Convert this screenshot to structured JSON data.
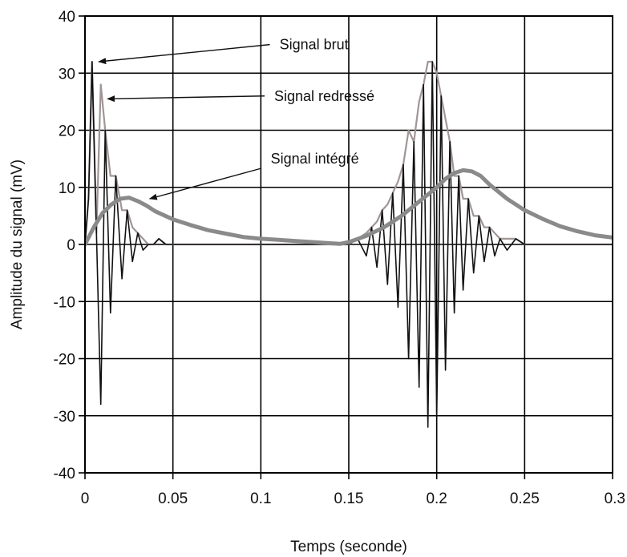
{
  "chart_data": {
    "type": "line",
    "title": "",
    "xlabel": "Temps (seconde)",
    "ylabel": "Amplitude du signal (mV)",
    "xlim": [
      0,
      0.3
    ],
    "ylim": [
      -40,
      40
    ],
    "xticks": [
      0,
      0.05,
      0.1,
      0.15,
      0.2,
      0.25,
      0.3
    ],
    "xtick_labels": [
      "0",
      "0.05",
      "0.1",
      "0.15",
      "0.2",
      "0.25",
      "0.3"
    ],
    "yticks": [
      -40,
      -30,
      -20,
      -10,
      0,
      10,
      20,
      30,
      40
    ],
    "ytick_labels": [
      "-40",
      "-30",
      "-20",
      "-10",
      "0",
      "10",
      "20",
      "30",
      "40"
    ],
    "grid": true,
    "series": [
      {
        "key": "raw",
        "color": "#111111",
        "x": [
          0,
          0.002,
          0.004,
          0.0065,
          0.009,
          0.0115,
          0.0145,
          0.0175,
          0.021,
          0.024,
          0.027,
          0.03,
          0.033,
          0.036,
          0.039,
          0.042,
          0.046,
          0.05,
          0.055,
          0.06,
          0.07,
          0.08,
          0.09,
          0.1,
          0.11,
          0.12,
          0.13,
          0.14,
          0.145,
          0.15,
          0.155,
          0.16,
          0.163,
          0.166,
          0.169,
          0.172,
          0.175,
          0.178,
          0.181,
          0.184,
          0.187,
          0.19,
          0.1925,
          0.195,
          0.1975,
          0.2,
          0.2025,
          0.205,
          0.2075,
          0.21,
          0.2125,
          0.215,
          0.218,
          0.221,
          0.224,
          0.227,
          0.23,
          0.233,
          0.236,
          0.24,
          0.245,
          0.25,
          0.255,
          0.26,
          0.27,
          0.28,
          0.29,
          0.3
        ],
        "y": [
          0,
          8,
          32,
          2,
          -28,
          20,
          -12,
          12,
          -6,
          6,
          -3,
          2,
          -1,
          0,
          0,
          1,
          0,
          0,
          0,
          0,
          0,
          0,
          0,
          0,
          0,
          0,
          0,
          0,
          0,
          0,
          1,
          -2,
          3,
          -4,
          6,
          -7,
          9,
          -11,
          14,
          -20,
          18,
          -25,
          28,
          -32,
          32,
          -30,
          26,
          -22,
          18,
          -12,
          12,
          -8,
          8,
          -5,
          5,
          -3,
          3,
          -2,
          1,
          -1,
          1,
          0,
          0,
          0,
          0,
          0,
          0,
          0
        ]
      },
      {
        "key": "rectified",
        "color": "#a09696",
        "x": [
          0,
          0.002,
          0.004,
          0.0065,
          0.009,
          0.0115,
          0.0145,
          0.0175,
          0.021,
          0.024,
          0.027,
          0.03,
          0.033,
          0.036,
          0.039,
          0.042,
          0.046,
          0.05,
          0.06,
          0.07,
          0.08,
          0.09,
          0.1,
          0.11,
          0.12,
          0.13,
          0.14,
          0.15,
          0.16,
          0.163,
          0.166,
          0.169,
          0.172,
          0.175,
          0.178,
          0.181,
          0.184,
          0.187,
          0.19,
          0.1925,
          0.195,
          0.1975,
          0.2,
          0.2025,
          0.205,
          0.2075,
          0.21,
          0.2125,
          0.215,
          0.218,
          0.221,
          0.224,
          0.227,
          0.23,
          0.233,
          0.236,
          0.24,
          0.245,
          0.25,
          0.26,
          0.27,
          0.28,
          0.3
        ],
        "y": [
          0,
          8,
          32,
          2,
          28,
          20,
          12,
          12,
          6,
          6,
          3,
          2,
          1,
          0,
          0,
          1,
          0,
          0,
          0,
          0,
          0,
          0,
          0,
          0,
          0,
          0,
          0,
          0,
          2,
          3,
          4,
          6,
          7,
          9,
          11,
          14,
          20,
          18,
          25,
          28,
          32,
          32,
          30,
          26,
          22,
          18,
          12,
          12,
          8,
          8,
          5,
          5,
          3,
          3,
          2,
          1,
          1,
          1,
          0,
          0,
          0,
          0,
          0
        ]
      },
      {
        "key": "integrated",
        "color": "#8a8a8a",
        "x": [
          0,
          0.005,
          0.01,
          0.015,
          0.02,
          0.025,
          0.03,
          0.035,
          0.04,
          0.05,
          0.06,
          0.07,
          0.08,
          0.09,
          0.1,
          0.11,
          0.12,
          0.13,
          0.14,
          0.145,
          0.15,
          0.16,
          0.17,
          0.18,
          0.19,
          0.2,
          0.205,
          0.21,
          0.215,
          0.22,
          0.225,
          0.23,
          0.24,
          0.25,
          0.26,
          0.27,
          0.28,
          0.29,
          0.3
        ],
        "y": [
          0,
          3,
          5.5,
          7,
          8,
          8.2,
          7.6,
          6.8,
          5.8,
          4.4,
          3.4,
          2.5,
          1.9,
          1.3,
          1,
          0.8,
          0.6,
          0.4,
          0.2,
          0.1,
          0.4,
          1.5,
          3,
          5,
          7.5,
          10,
          11.5,
          12.5,
          13,
          12.8,
          12,
          10.5,
          8,
          6,
          4.5,
          3.2,
          2.3,
          1.6,
          1.2
        ]
      }
    ],
    "annotations": [
      {
        "text": "Signal brut",
        "target": [
          0.006,
          32
        ],
        "text_pos": [
          0.065,
          35
        ]
      },
      {
        "text": "Signal redressé",
        "target": [
          0.011,
          25.5
        ],
        "text_pos": [
          0.062,
          26
        ]
      },
      {
        "text": "Signal intégré",
        "target": [
          0.035,
          8
        ],
        "text_pos": [
          0.06,
          15
        ]
      }
    ]
  }
}
